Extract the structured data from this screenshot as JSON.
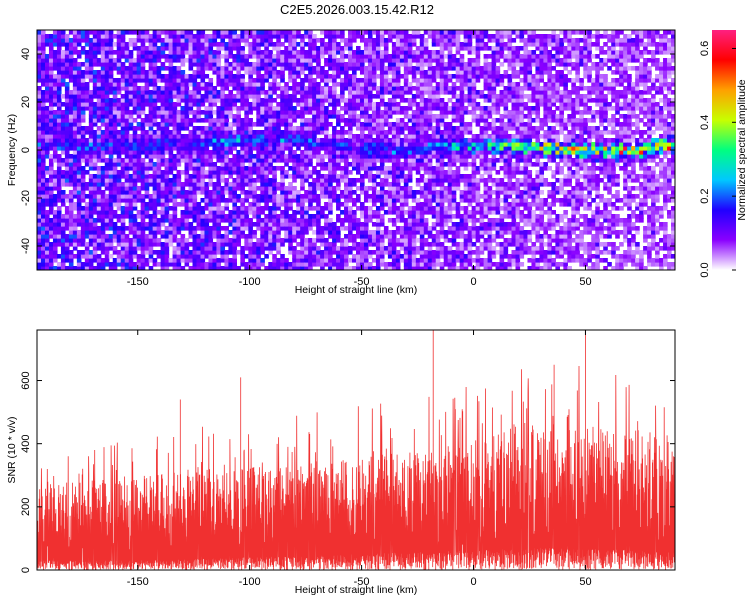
{
  "title": "C2E5.2026.003.15.42.R12",
  "chart_data": [
    {
      "type": "heatmap",
      "xlabel": "Height of straight line (km)",
      "ylabel": "Frequency (Hz)",
      "xlim": [
        -195,
        90
      ],
      "ylim": [
        -50,
        50
      ],
      "x_ticks": [
        -150,
        -100,
        -50,
        0,
        50
      ],
      "y_ticks": [
        -40,
        -20,
        0,
        20,
        40
      ],
      "x_tick_labels": [
        "-150",
        "-100",
        "-50",
        "0",
        "50"
      ],
      "y_tick_labels": [
        "-40",
        "-20",
        "0",
        "20",
        "40"
      ],
      "colorbar": {
        "label": "Normalized spectral amplitude",
        "range": [
          0.0,
          0.65
        ],
        "ticks": [
          0.0,
          0.2,
          0.4,
          0.6
        ],
        "tick_labels": [
          "0.0",
          "0.2",
          "0.4",
          "0.6"
        ],
        "colors": [
          "#ffffff",
          "#8a00ff",
          "#2000ff",
          "#00c8ff",
          "#00ff80",
          "#c8ff00",
          "#ffa000",
          "#ff0000",
          "#ff2080"
        ]
      },
      "signal_band": {
        "center_hz": [
          {
            "x": -130,
            "y": 2
          },
          {
            "x": -110,
            "y": 4
          },
          {
            "x": -90,
            "y": 5
          },
          {
            "x": -70,
            "y": 3
          },
          {
            "x": -50,
            "y": 1
          },
          {
            "x": -30,
            "y": 0
          },
          {
            "x": -10,
            "y": 2
          },
          {
            "x": 10,
            "y": 2
          },
          {
            "x": 30,
            "y": 1
          },
          {
            "x": 50,
            "y": 0
          },
          {
            "x": 70,
            "y": 0
          },
          {
            "x": 88,
            "y": 2
          }
        ],
        "peak_amplitude": [
          {
            "x": -130,
            "a": 0.22
          },
          {
            "x": -100,
            "a": 0.28
          },
          {
            "x": -80,
            "a": 0.25
          },
          {
            "x": -50,
            "a": 0.22
          },
          {
            "x": -20,
            "a": 0.28
          },
          {
            "x": 0,
            "a": 0.35
          },
          {
            "x": 20,
            "a": 0.42
          },
          {
            "x": 40,
            "a": 0.52
          },
          {
            "x": 60,
            "a": 0.58
          },
          {
            "x": 88,
            "a": 0.55
          }
        ]
      }
    },
    {
      "type": "line",
      "xlabel": "Height of straight line (km)",
      "ylabel": "SNR (10 * v/v)",
      "xlim": [
        -195,
        90
      ],
      "ylim": [
        0,
        760
      ],
      "x_ticks": [
        -150,
        -100,
        -50,
        0,
        50
      ],
      "y_ticks": [
        0,
        200,
        400,
        600
      ],
      "x_tick_labels": [
        "-150",
        "-100",
        "-50",
        "0",
        "50"
      ],
      "y_tick_labels": [
        "0",
        "200",
        "400",
        "600"
      ],
      "color": "#f03030",
      "envelope": {
        "x": [
          -195,
          -150,
          -100,
          -50,
          -20,
          0,
          20,
          50,
          90
        ],
        "low": [
          30,
          30,
          40,
          50,
          60,
          60,
          70,
          70,
          60
        ],
        "high": [
          270,
          300,
          330,
          360,
          380,
          420,
          470,
          460,
          430
        ],
        "peak": [
          360,
          420,
          480,
          520,
          560,
          590,
          640,
          650,
          560
        ]
      },
      "spikes": [
        {
          "x": -18,
          "y": 760
        },
        {
          "x": 50,
          "y": 760
        },
        {
          "x": -104,
          "y": 610
        },
        {
          "x": 36,
          "y": 650
        },
        {
          "x": -131,
          "y": 540
        }
      ]
    }
  ],
  "colors": {
    "series": "#f03030",
    "axis": "#000000",
    "background": "#ffffff"
  }
}
